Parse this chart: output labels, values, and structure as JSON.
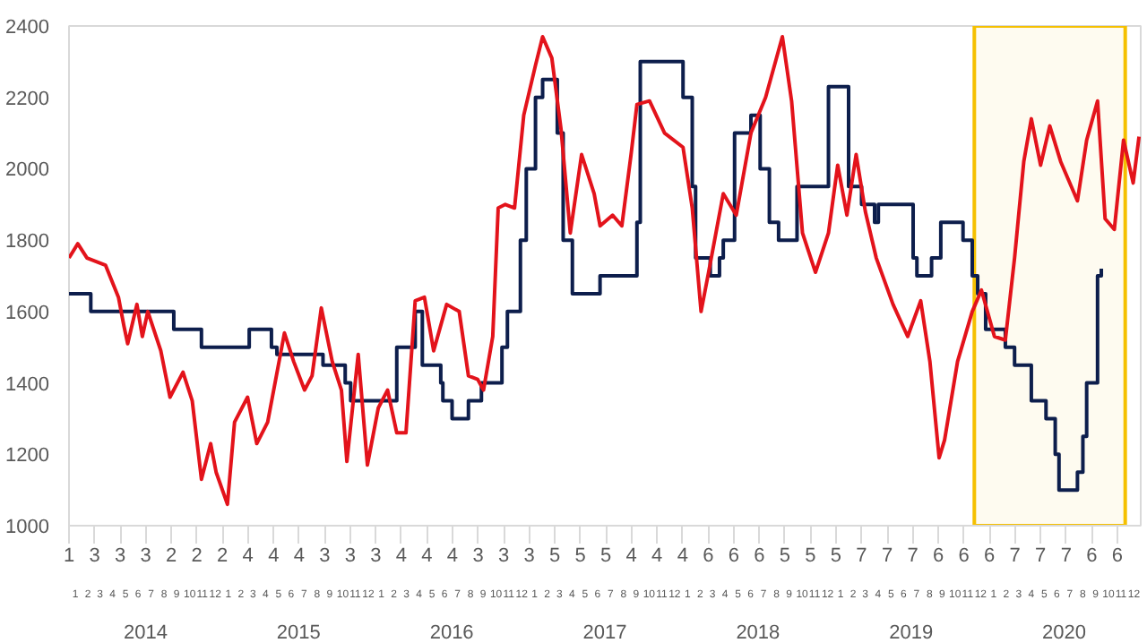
{
  "chart_data": {
    "type": "line",
    "xlim": [
      "2014-01-01",
      "2021-01-01"
    ],
    "ylim": [
      1000,
      2400
    ],
    "yticks": [
      1000,
      1200,
      1400,
      1600,
      1800,
      2000,
      2200,
      2400
    ],
    "xticks": [
      {
        "value": "2014-01-01",
        "label": "1"
      },
      {
        "value": "2014-03-03",
        "label": "3"
      },
      {
        "value": "2014-05-03",
        "label": "3"
      },
      {
        "value": "2014-07-03",
        "label": "3"
      },
      {
        "value": "2014-09-02",
        "label": "2"
      },
      {
        "value": "2014-11-02",
        "label": "2"
      },
      {
        "value": "2015-01-02",
        "label": "2"
      },
      {
        "value": "2015-03-04",
        "label": "4"
      },
      {
        "value": "2015-05-04",
        "label": "4"
      },
      {
        "value": "2015-07-04",
        "label": "4"
      },
      {
        "value": "2015-09-03",
        "label": "3"
      },
      {
        "value": "2015-11-03",
        "label": "3"
      },
      {
        "value": "2016-01-03",
        "label": "3"
      },
      {
        "value": "2016-03-04",
        "label": "4"
      },
      {
        "value": "2016-05-04",
        "label": "4"
      },
      {
        "value": "2016-07-04",
        "label": "4"
      },
      {
        "value": "2016-09-03",
        "label": "3"
      },
      {
        "value": "2016-11-03",
        "label": "3"
      },
      {
        "value": "2017-01-03",
        "label": "3"
      },
      {
        "value": "2017-03-05",
        "label": "5"
      },
      {
        "value": "2017-05-05",
        "label": "5"
      },
      {
        "value": "2017-07-05",
        "label": "5"
      },
      {
        "value": "2017-09-04",
        "label": "4"
      },
      {
        "value": "2017-11-04",
        "label": "4"
      },
      {
        "value": "2018-01-04",
        "label": "4"
      },
      {
        "value": "2018-03-06",
        "label": "6"
      },
      {
        "value": "2018-05-06",
        "label": "6"
      },
      {
        "value": "2018-07-06",
        "label": "6"
      },
      {
        "value": "2018-09-05",
        "label": "5"
      },
      {
        "value": "2018-11-05",
        "label": "5"
      },
      {
        "value": "2019-01-05",
        "label": "5"
      },
      {
        "value": "2019-03-07",
        "label": "7"
      },
      {
        "value": "2019-05-07",
        "label": "7"
      },
      {
        "value": "2019-07-07",
        "label": "7"
      },
      {
        "value": "2019-09-06",
        "label": "6"
      },
      {
        "value": "2019-11-06",
        "label": "6"
      },
      {
        "value": "2020-01-06",
        "label": "6"
      },
      {
        "value": "2020-03-07",
        "label": "7"
      },
      {
        "value": "2020-05-07",
        "label": "7"
      },
      {
        "value": "2020-07-07",
        "label": "7"
      },
      {
        "value": "2020-09-06",
        "label": "6"
      },
      {
        "value": "2020-11-06",
        "label": "6"
      }
    ],
    "x2ticks": [
      {
        "value": "2014-01-16",
        "label": "1"
      },
      {
        "value": "2014-02-15",
        "label": "2"
      },
      {
        "value": "2014-03-16",
        "label": "3"
      },
      {
        "value": "2014-04-15",
        "label": "4"
      },
      {
        "value": "2014-05-16",
        "label": "5"
      },
      {
        "value": "2014-06-15",
        "label": "6"
      },
      {
        "value": "2014-07-16",
        "label": "7"
      },
      {
        "value": "2014-08-16",
        "label": "8"
      },
      {
        "value": "2014-09-15",
        "label": "9"
      },
      {
        "value": "2014-10-16",
        "label": "10"
      },
      {
        "value": "2014-11-15",
        "label": "11"
      },
      {
        "value": "2014-12-16",
        "label": "12"
      },
      {
        "value": "2015-01-16",
        "label": "1"
      },
      {
        "value": "2015-02-15",
        "label": "2"
      },
      {
        "value": "2015-03-16",
        "label": "3"
      },
      {
        "value": "2015-04-15",
        "label": "4"
      },
      {
        "value": "2015-05-16",
        "label": "5"
      },
      {
        "value": "2015-06-15",
        "label": "6"
      },
      {
        "value": "2015-07-16",
        "label": "7"
      },
      {
        "value": "2015-08-16",
        "label": "8"
      },
      {
        "value": "2015-09-15",
        "label": "9"
      },
      {
        "value": "2015-10-16",
        "label": "10"
      },
      {
        "value": "2015-11-15",
        "label": "11"
      },
      {
        "value": "2015-12-16",
        "label": "12"
      },
      {
        "value": "2016-01-16",
        "label": "1"
      },
      {
        "value": "2016-02-15",
        "label": "2"
      },
      {
        "value": "2016-03-16",
        "label": "3"
      },
      {
        "value": "2016-04-15",
        "label": "4"
      },
      {
        "value": "2016-05-16",
        "label": "5"
      },
      {
        "value": "2016-06-15",
        "label": "6"
      },
      {
        "value": "2016-07-16",
        "label": "7"
      },
      {
        "value": "2016-08-16",
        "label": "8"
      },
      {
        "value": "2016-09-15",
        "label": "9"
      },
      {
        "value": "2016-10-16",
        "label": "10"
      },
      {
        "value": "2016-11-15",
        "label": "11"
      },
      {
        "value": "2016-12-16",
        "label": "12"
      },
      {
        "value": "2017-01-16",
        "label": "1"
      },
      {
        "value": "2017-02-15",
        "label": "2"
      },
      {
        "value": "2017-03-16",
        "label": "3"
      },
      {
        "value": "2017-04-15",
        "label": "4"
      },
      {
        "value": "2017-05-16",
        "label": "5"
      },
      {
        "value": "2017-06-15",
        "label": "6"
      },
      {
        "value": "2017-07-16",
        "label": "7"
      },
      {
        "value": "2017-08-16",
        "label": "8"
      },
      {
        "value": "2017-09-15",
        "label": "9"
      },
      {
        "value": "2017-10-16",
        "label": "10"
      },
      {
        "value": "2017-11-15",
        "label": "11"
      },
      {
        "value": "2017-12-16",
        "label": "12"
      },
      {
        "value": "2018-01-16",
        "label": "1"
      },
      {
        "value": "2018-02-15",
        "label": "2"
      },
      {
        "value": "2018-03-16",
        "label": "3"
      },
      {
        "value": "2018-04-15",
        "label": "4"
      },
      {
        "value": "2018-05-16",
        "label": "5"
      },
      {
        "value": "2018-06-15",
        "label": "6"
      },
      {
        "value": "2018-07-16",
        "label": "7"
      },
      {
        "value": "2018-08-16",
        "label": "8"
      },
      {
        "value": "2018-09-15",
        "label": "9"
      },
      {
        "value": "2018-10-16",
        "label": "10"
      },
      {
        "value": "2018-11-15",
        "label": "11"
      },
      {
        "value": "2018-12-16",
        "label": "12"
      },
      {
        "value": "2019-01-16",
        "label": "1"
      },
      {
        "value": "2019-02-15",
        "label": "2"
      },
      {
        "value": "2019-03-16",
        "label": "3"
      },
      {
        "value": "2019-04-15",
        "label": "4"
      },
      {
        "value": "2019-05-16",
        "label": "5"
      },
      {
        "value": "2019-06-15",
        "label": "6"
      },
      {
        "value": "2019-07-16",
        "label": "7"
      },
      {
        "value": "2019-08-16",
        "label": "8"
      },
      {
        "value": "2019-09-15",
        "label": "9"
      },
      {
        "value": "2019-10-16",
        "label": "10"
      },
      {
        "value": "2019-11-15",
        "label": "11"
      },
      {
        "value": "2019-12-16",
        "label": "12"
      },
      {
        "value": "2020-01-16",
        "label": "1"
      },
      {
        "value": "2020-02-15",
        "label": "2"
      },
      {
        "value": "2020-03-16",
        "label": "3"
      },
      {
        "value": "2020-04-15",
        "label": "4"
      },
      {
        "value": "2020-05-16",
        "label": "5"
      },
      {
        "value": "2020-06-15",
        "label": "6"
      },
      {
        "value": "2020-07-16",
        "label": "7"
      },
      {
        "value": "2020-08-16",
        "label": "8"
      },
      {
        "value": "2020-09-15",
        "label": "9"
      },
      {
        "value": "2020-10-16",
        "label": "10"
      },
      {
        "value": "2020-11-15",
        "label": "11"
      },
      {
        "value": "2020-12-16",
        "label": "12"
      }
    ],
    "x2lim": [
      "2014-01-01",
      "2021-01-01"
    ],
    "annotations": [
      "2014",
      "2015",
      "2016",
      "2017",
      "2018",
      "2019",
      "2020"
    ],
    "grid": false,
    "bands": [
      {
        "axis": "x",
        "from": "2019-12-01",
        "to": "2020-11-25",
        "color": "#f5c000"
      }
    ],
    "series": [
      {
        "type": "step",
        "color": "#0d1e4c",
        "x": [
          "2014-01-01",
          "2014-02-22",
          "2014-09-08",
          "2014-11-13",
          "2015-03-07",
          "2015-04-29",
          "2015-05-12",
          "2015-08-30",
          "2015-10-22",
          "2015-11-04",
          "2016-02-22",
          "2016-04-06",
          "2016-04-23",
          "2016-06-06",
          "2016-06-11",
          "2016-07-03",
          "2016-08-11",
          "2016-09-11",
          "2016-10-30",
          "2016-11-12",
          "2016-12-13",
          "2016-12-27",
          "2017-01-18",
          "2017-02-04",
          "2017-03-11",
          "2017-03-25",
          "2017-04-16",
          "2017-06-21",
          "2017-09-17",
          "2017-09-25",
          "2018-01-05",
          "2018-01-27",
          "2018-02-04",
          "2018-03-11",
          "2018-04-02",
          "2018-04-11",
          "2018-05-08",
          "2018-06-16",
          "2018-07-08",
          "2018-07-30",
          "2018-08-21",
          "2018-10-04",
          "2018-12-18",
          "2019-02-04",
          "2019-03-07",
          "2019-04-07",
          "2019-04-16",
          "2019-07-08",
          "2019-07-17",
          "2019-08-21",
          "2019-09-12",
          "2019-11-04",
          "2019-11-26",
          "2019-12-09",
          "2019-12-28",
          "2020-02-13",
          "2020-03-06",
          "2020-04-15",
          "2020-05-20",
          "2020-06-11",
          "2020-06-20",
          "2020-08-03",
          "2020-08-16",
          "2020-08-25",
          "2020-09-20",
          "2020-09-29"
        ],
        "values": [
          1650,
          1600,
          1550,
          1500,
          1550,
          1500,
          1480,
          1450,
          1400,
          1350,
          1500,
          1600,
          1450,
          1400,
          1350,
          1300,
          1350,
          1400,
          1500,
          1600,
          1800,
          2000,
          2200,
          2250,
          2100,
          1800,
          1650,
          1700,
          1850,
          2300,
          2200,
          1950,
          1750,
          1700,
          1750,
          1800,
          2100,
          2150,
          2000,
          1850,
          1800,
          1950,
          2230,
          1950,
          1900,
          1850,
          1900,
          1750,
          1700,
          1750,
          1850,
          1800,
          1700,
          1650,
          1550,
          1500,
          1450,
          1350,
          1300,
          1200,
          1100,
          1150,
          1250,
          1400,
          1700,
          1720
        ]
      },
      {
        "type": "line",
        "color": "#e3131b",
        "x": [
          "2014-01-01",
          "2014-01-22",
          "2014-02-13",
          "2014-03-29",
          "2014-04-29",
          "2014-05-12",
          "2014-05-21",
          "2014-06-12",
          "2014-06-25",
          "2014-07-08",
          "2014-08-08",
          "2014-08-30",
          "2014-09-30",
          "2014-10-22",
          "2014-11-13",
          "2014-12-05",
          "2014-12-18",
          "2015-01-14",
          "2015-01-31",
          "2015-03-03",
          "2015-03-25",
          "2015-04-20",
          "2015-05-30",
          "2015-06-21",
          "2015-07-17",
          "2015-08-04",
          "2015-08-26",
          "2015-09-21",
          "2015-10-13",
          "2015-10-26",
          "2015-11-22",
          "2015-12-14",
          "2016-01-09",
          "2016-01-31",
          "2016-02-22",
          "2016-03-15",
          "2016-04-06",
          "2016-04-28",
          "2016-05-20",
          "2016-06-20",
          "2016-07-20",
          "2016-08-11",
          "2016-09-02",
          "2016-09-16",
          "2016-10-08",
          "2016-10-21",
          "2016-11-07",
          "2016-11-29",
          "2016-12-21",
          "2017-01-18",
          "2017-02-04",
          "2017-02-26",
          "2017-03-20",
          "2017-04-11",
          "2017-05-08",
          "2017-06-07",
          "2017-06-21",
          "2017-07-21",
          "2017-08-12",
          "2017-09-03",
          "2017-09-17",
          "2017-10-17",
          "2017-11-22",
          "2018-01-05",
          "2018-01-27",
          "2018-02-17",
          "2018-03-07",
          "2018-04-11",
          "2018-05-12",
          "2018-06-16",
          "2018-07-21",
          "2018-08-30",
          "2018-09-21",
          "2018-10-17",
          "2018-11-17",
          "2018-12-18",
          "2019-01-09",
          "2019-01-31",
          "2019-02-22",
          "2019-03-16",
          "2019-04-11",
          "2019-05-21",
          "2019-06-25",
          "2019-07-26",
          "2019-08-17",
          "2019-09-08",
          "2019-09-21",
          "2019-10-22",
          "2019-11-26",
          "2019-12-18",
          "2020-01-18",
          "2020-02-13",
          "2020-03-06",
          "2020-03-28",
          "2020-04-15",
          "2020-05-07",
          "2020-05-29",
          "2020-06-24",
          "2020-08-03",
          "2020-08-25",
          "2020-09-20",
          "2020-10-08",
          "2020-10-30",
          "2020-11-21",
          "2020-12-14",
          "2020-12-28"
        ],
        "values": [
          1750,
          1790,
          1750,
          1730,
          1640,
          1560,
          1510,
          1620,
          1530,
          1600,
          1490,
          1360,
          1430,
          1350,
          1130,
          1230,
          1150,
          1060,
          1290,
          1360,
          1230,
          1290,
          1540,
          1460,
          1380,
          1420,
          1610,
          1460,
          1380,
          1180,
          1480,
          1170,
          1330,
          1380,
          1260,
          1260,
          1630,
          1640,
          1490,
          1620,
          1600,
          1420,
          1410,
          1380,
          1530,
          1890,
          1900,
          1890,
          2150,
          2290,
          2370,
          2310,
          2110,
          1820,
          2040,
          1930,
          1840,
          1870,
          1840,
          2040,
          2180,
          2190,
          2100,
          2060,
          1890,
          1600,
          1710,
          1930,
          1870,
          2100,
          2200,
          2370,
          2190,
          1820,
          1710,
          1820,
          2010,
          1870,
          2040,
          1880,
          1750,
          1620,
          1530,
          1630,
          1460,
          1190,
          1240,
          1460,
          1600,
          1660,
          1530,
          1520,
          1750,
          2020,
          2140,
          2010,
          2120,
          2020,
          1910,
          2080,
          2190,
          1860,
          1830,
          2080,
          1960,
          2090
        ]
      }
    ]
  }
}
